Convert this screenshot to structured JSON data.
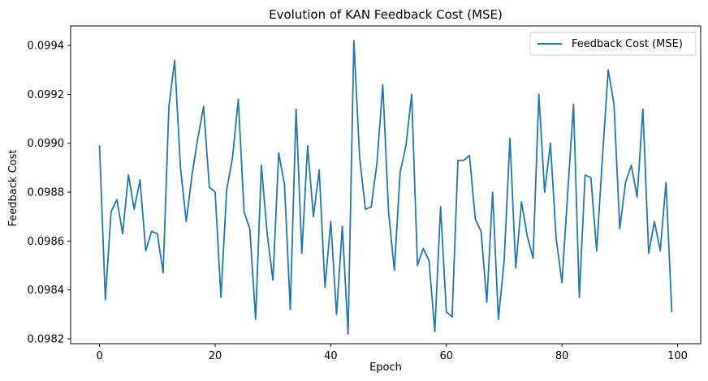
{
  "chart_data": {
    "type": "line",
    "title": "Evolution of KAN Feedback Cost (MSE)",
    "xlabel": "Epoch",
    "ylabel": "Feedback Cost",
    "xlim": [
      -5,
      104
    ],
    "ylim": [
      0.09818,
      0.09948
    ],
    "xticks": [
      0,
      20,
      40,
      60,
      80,
      100
    ],
    "yticks": [
      0.0982,
      0.0984,
      0.0986,
      0.0988,
      0.099,
      0.0992,
      0.0994
    ],
    "ytick_labels": [
      "0.0982",
      "0.0984",
      "0.0986",
      "0.0988",
      "0.0990",
      "0.0992",
      "0.0994"
    ],
    "legend_position": "top-right",
    "grid": false,
    "series": [
      {
        "name": "Feedback Cost (MSE)",
        "color": "#1f77b4",
        "x": [
          0,
          1,
          2,
          3,
          4,
          5,
          6,
          7,
          8,
          9,
          10,
          11,
          12,
          13,
          14,
          15,
          16,
          17,
          18,
          19,
          20,
          21,
          22,
          23,
          24,
          25,
          26,
          27,
          28,
          29,
          30,
          31,
          32,
          33,
          34,
          35,
          36,
          37,
          38,
          39,
          40,
          41,
          42,
          43,
          44,
          45,
          46,
          47,
          48,
          49,
          50,
          51,
          52,
          53,
          54,
          55,
          56,
          57,
          58,
          59,
          60,
          61,
          62,
          63,
          64,
          65,
          66,
          67,
          68,
          69,
          70,
          71,
          72,
          73,
          74,
          75,
          76,
          77,
          78,
          79,
          80,
          81,
          82,
          83,
          84,
          85,
          86,
          87,
          88,
          89,
          90,
          91,
          92,
          93,
          94,
          95,
          96,
          97,
          98,
          99
        ],
        "values": [
          0.09899,
          0.09836,
          0.09872,
          0.09877,
          0.09863,
          0.09887,
          0.09873,
          0.09885,
          0.09856,
          0.09864,
          0.09863,
          0.09847,
          0.09915,
          0.09934,
          0.0989,
          0.09868,
          0.09887,
          0.09902,
          0.09915,
          0.09882,
          0.0988,
          0.09837,
          0.09881,
          0.09894,
          0.09918,
          0.09872,
          0.09865,
          0.09828,
          0.09891,
          0.09863,
          0.09844,
          0.09896,
          0.09883,
          0.09832,
          0.09914,
          0.09855,
          0.09899,
          0.0987,
          0.09889,
          0.09841,
          0.09868,
          0.0983,
          0.09866,
          0.09822,
          0.09942,
          0.09894,
          0.09873,
          0.09874,
          0.09892,
          0.09924,
          0.09872,
          0.09848,
          0.09888,
          0.09899,
          0.0992,
          0.0985,
          0.09857,
          0.09852,
          0.09823,
          0.09874,
          0.09831,
          0.09829,
          0.09893,
          0.09893,
          0.09895,
          0.09869,
          0.09864,
          0.09835,
          0.0988,
          0.09828,
          0.09852,
          0.09902,
          0.09849,
          0.09876,
          0.09862,
          0.09853,
          0.0992,
          0.0988,
          0.099,
          0.09861,
          0.09843,
          0.0988,
          0.09916,
          0.09837,
          0.09887,
          0.09886,
          0.09856,
          0.09894,
          0.0993,
          0.09916,
          0.09865,
          0.09884,
          0.09891,
          0.09878,
          0.09914,
          0.09855,
          0.09868,
          0.09856,
          0.09884,
          0.09831
        ]
      }
    ]
  }
}
